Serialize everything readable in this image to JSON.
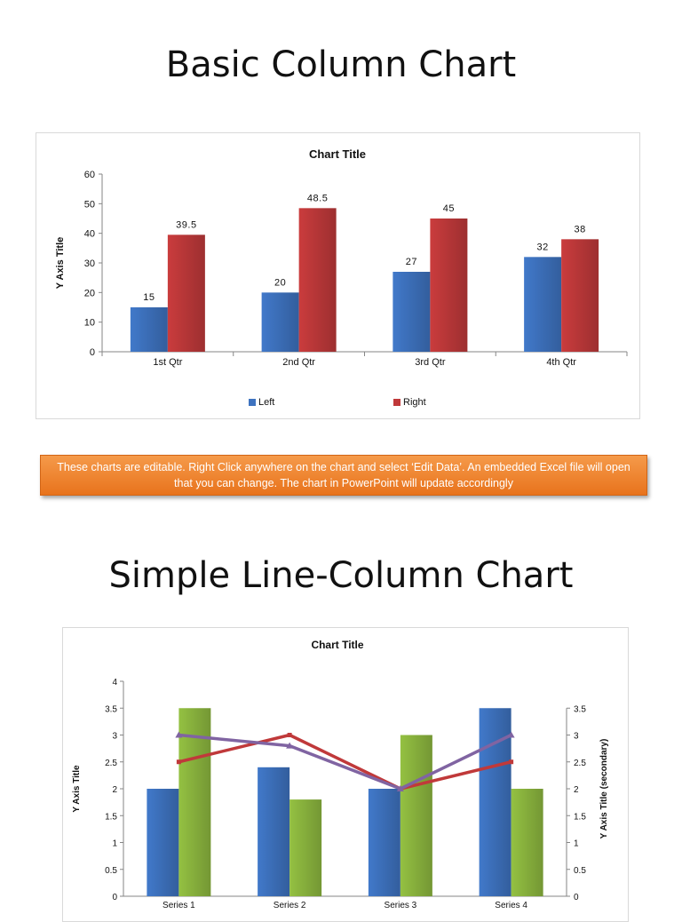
{
  "page": {
    "title1": "Basic Column Chart",
    "title2": "Simple Line-Column Chart",
    "note": "These charts are editable. Right Click anywhere on the chart and select ‘Edit Data’. An embedded Excel file will open that you can change. The chart in PowerPoint will update accordingly",
    "note_color": "#ED7D31"
  },
  "chart_data": [
    {
      "type": "bar",
      "title": "Chart Title",
      "xlabel": "",
      "ylabel": "Y Axis Title",
      "ylim": [
        0,
        60
      ],
      "yticks": [
        0,
        10,
        20,
        30,
        40,
        50,
        60
      ],
      "categories": [
        "1st Qtr",
        "2nd Qtr",
        "3rd Qtr",
        "4th Qtr"
      ],
      "series": [
        {
          "name": "Left",
          "values": [
            15,
            20,
            27,
            32
          ],
          "color": "#3E73C0"
        },
        {
          "name": "Right",
          "values": [
            39.5,
            48.5,
            45,
            38
          ],
          "color": "#C0393A"
        }
      ],
      "data_labels": true,
      "legend": "bottom",
      "grid": false
    },
    {
      "type": "bar",
      "title": "Chart Title",
      "ylabel": "Y Axis Title",
      "y2label": "Y Axis Title (secondary)",
      "ylim": [
        0,
        4
      ],
      "yticks": [
        0,
        0.5,
        1,
        1.5,
        2,
        2.5,
        3,
        3.5,
        4
      ],
      "y2lim": [
        0,
        3.5
      ],
      "y2ticks": [
        0,
        0.5,
        1,
        1.5,
        2,
        2.5,
        3,
        3.5
      ],
      "categories": [
        "Series 1",
        "Series 2",
        "Series 3",
        "Series 4"
      ],
      "bar_series": [
        {
          "values": [
            2,
            2.4,
            2,
            3.5
          ],
          "color": "#3E73C0"
        },
        {
          "values": [
            3.5,
            1.8,
            3,
            2
          ],
          "color": "#8DB83F"
        }
      ],
      "line_series": [
        {
          "values": [
            2.5,
            3,
            2,
            2.5
          ],
          "color": "#C0393A",
          "axis": "secondary"
        },
        {
          "values": [
            3,
            2.8,
            2,
            3
          ],
          "color": "#8064A2",
          "axis": "secondary",
          "marker": "triangle"
        }
      ],
      "grid": false
    }
  ]
}
